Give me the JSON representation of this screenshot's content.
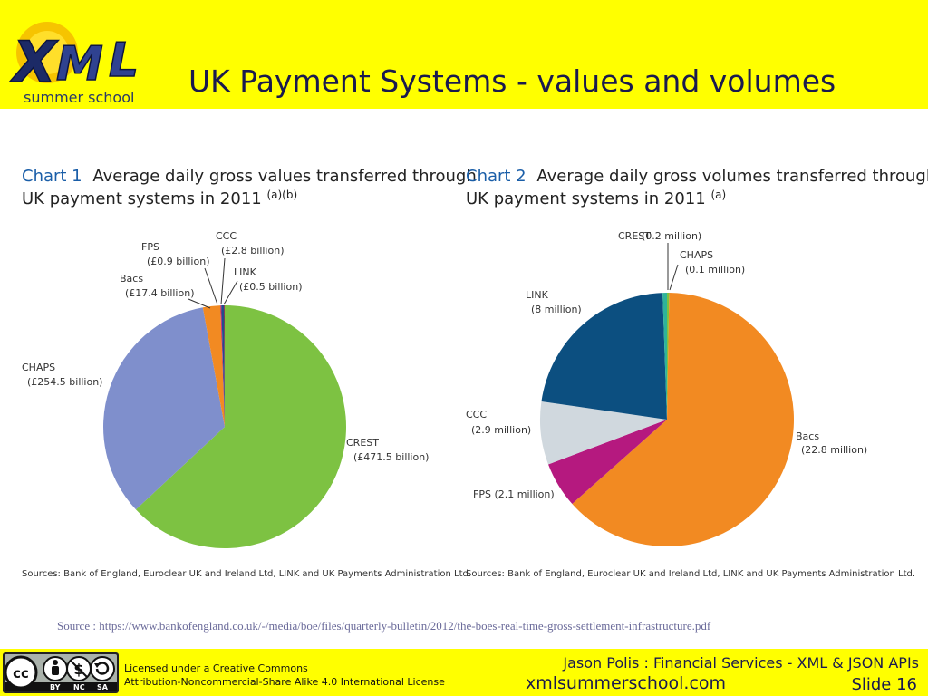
{
  "header": {
    "logo_text": "summer school",
    "title": "UK Payment Systems - values and volumes"
  },
  "chart_data": [
    {
      "type": "pie",
      "title_prefix": "Chart 1",
      "title_line1": "Average daily gross values transferred through",
      "title_line2": "UK payment systems in 2011",
      "title_sup": "(a)(b)",
      "slices": [
        {
          "label": "CREST",
          "value_text": "(£471.5 billion)",
          "value": 471.5,
          "color": "#7dc242"
        },
        {
          "label": "CHAPS",
          "value_text": "(£254.5 billion)",
          "value": 254.5,
          "color": "#7f8fcc"
        },
        {
          "label": "Bacs",
          "value_text": "(£17.4 billion)",
          "value": 17.4,
          "color": "#f28a22"
        },
        {
          "label": "FPS",
          "value_text": "(£0.9 billion)",
          "value": 0.9,
          "color": "#b5197f"
        },
        {
          "label": "CCC",
          "value_text": "(£2.8 billion)",
          "value": 2.8,
          "color": "#1f4e8c"
        },
        {
          "label": "LINK",
          "value_text": "(£0.5 billion)",
          "value": 0.5,
          "color": "#d62728"
        }
      ],
      "sources": "Sources:  Bank of England, Euroclear UK and Ireland Ltd, LINK and UK Payments Administration Ltd."
    },
    {
      "type": "pie",
      "title_prefix": "Chart 2",
      "title_line1": "Average daily gross volumes transferred through",
      "title_line2": "UK payment systems in 2011",
      "title_sup": "(a)",
      "slices": [
        {
          "label": "CHAPS",
          "value_text": "(0.1 million)",
          "value": 0.1,
          "color": "#7cc242"
        },
        {
          "label": "Bacs",
          "value_text": "(22.8 million)",
          "value": 22.8,
          "color": "#f28a22"
        },
        {
          "label": "FPS",
          "value_text": "(2.1 million)",
          "value": 2.1,
          "color": "#b5197f"
        },
        {
          "label": "CCC",
          "value_text": "(2.9 million)",
          "value": 2.9,
          "color": "#d0d8de"
        },
        {
          "label": "LINK",
          "value_text": "(8 million)",
          "value": 8,
          "color": "#0c4f80"
        },
        {
          "label": "CREST",
          "value_text": "(0.2 million)",
          "value": 0.2,
          "color": "#2fb39a"
        }
      ],
      "sources": "Sources:  Bank of England, Euroclear UK and Ireland Ltd, LINK and UK Payments Administration Ltd."
    }
  ],
  "source_line": "Source : https://www.bankofengland.co.uk/-/media/boe/files/quarterly-bulletin/2012/the-boes-real-time-gross-settlement-infrastructure.pdf",
  "footer": {
    "badge_labels": [
      "BY",
      "NC",
      "SA"
    ],
    "license_line1": "Licensed under a Creative Commons",
    "license_line2": "Attribution-Noncommercial-Share Alike 4.0 International License",
    "author": "Jason Polis : Financial Services - XML & JSON APIs",
    "site": "xmlsummerschool.com",
    "slide": "Slide 16"
  }
}
